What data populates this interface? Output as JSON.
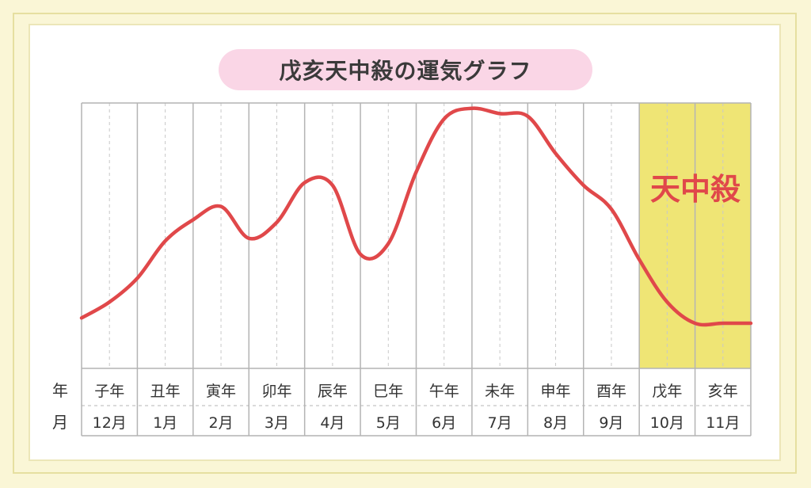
{
  "title": "戊亥天中殺の運気グラフ",
  "tenchusatsu_label": "天中殺",
  "row_labels": {
    "year": "年",
    "month": "月"
  },
  "colors": {
    "line": "#e0484a",
    "highlight": "#efe575",
    "grid": "#b4b4b4",
    "pill": "#fad6e6",
    "label_red": "#e0484a"
  },
  "chart_data": {
    "type": "line",
    "title": "戊亥天中殺の運気グラフ",
    "categories": [
      {
        "year": "子年",
        "month": "12月"
      },
      {
        "year": "丑年",
        "month": "1月"
      },
      {
        "year": "寅年",
        "month": "2月"
      },
      {
        "year": "卯年",
        "month": "3月"
      },
      {
        "year": "辰年",
        "month": "4月"
      },
      {
        "year": "巳年",
        "month": "5月"
      },
      {
        "year": "午年",
        "month": "6月"
      },
      {
        "year": "未年",
        "month": "7月"
      },
      {
        "year": "申年",
        "month": "8月"
      },
      {
        "year": "酉年",
        "month": "9月"
      },
      {
        "year": "戊年",
        "month": "10月"
      },
      {
        "year": "亥年",
        "month": "11月"
      }
    ],
    "series": [
      {
        "values": [
          [
            0.0,
            0.19
          ],
          [
            0.5,
            0.25
          ],
          [
            1.0,
            0.34
          ],
          [
            1.5,
            0.48
          ],
          [
            2.0,
            0.56
          ],
          [
            2.5,
            0.61
          ],
          [
            3.0,
            0.49
          ],
          [
            3.5,
            0.55
          ],
          [
            4.0,
            0.7
          ],
          [
            4.5,
            0.69
          ],
          [
            5.0,
            0.43
          ],
          [
            5.5,
            0.47
          ],
          [
            6.0,
            0.74
          ],
          [
            6.5,
            0.94
          ],
          [
            7.0,
            0.98
          ],
          [
            7.5,
            0.96
          ],
          [
            8.0,
            0.95
          ],
          [
            8.5,
            0.81
          ],
          [
            9.0,
            0.69
          ],
          [
            9.5,
            0.6
          ],
          [
            10.0,
            0.41
          ],
          [
            10.5,
            0.25
          ],
          [
            11.0,
            0.17
          ],
          [
            11.5,
            0.17
          ],
          [
            12.0,
            0.17
          ]
        ]
      }
    ],
    "highlight": {
      "from_index": 10,
      "to_index": 11,
      "label": "天中殺"
    },
    "ylim": [
      0,
      1
    ],
    "grid": true
  }
}
